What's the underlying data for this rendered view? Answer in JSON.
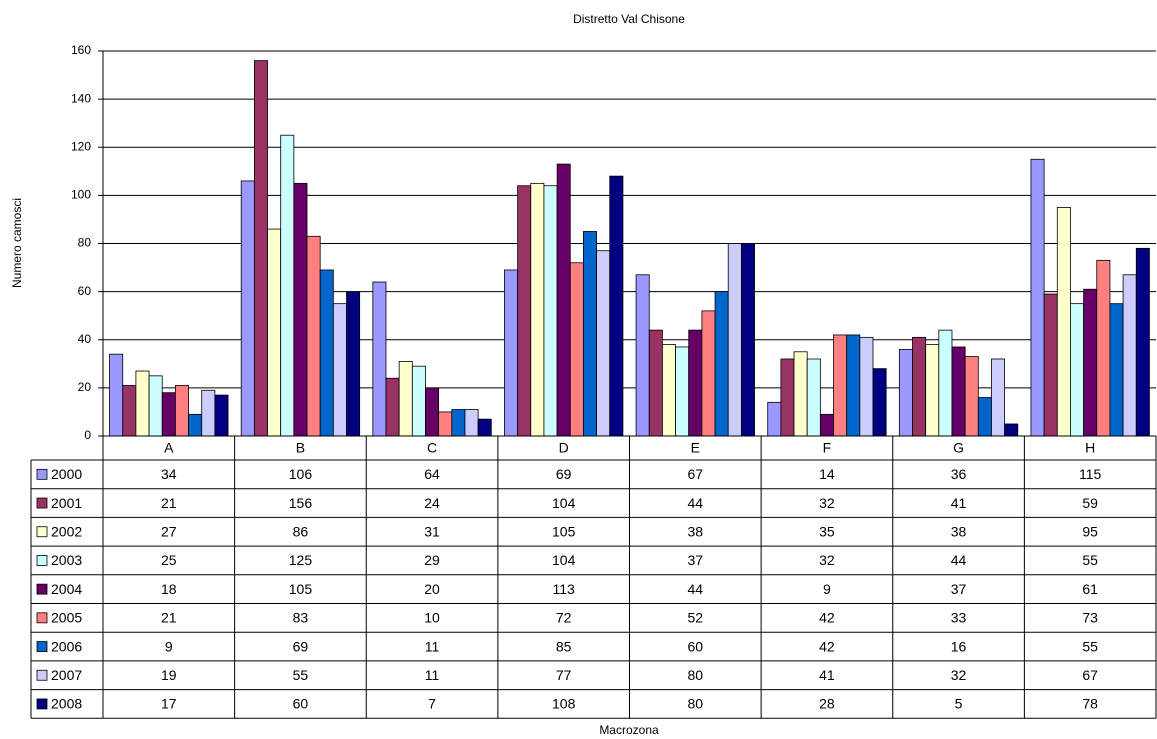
{
  "chart_data": {
    "type": "bar",
    "title": "Distretto Val Chisone",
    "x_label": "Macrozona",
    "y_label": "Numero camosci",
    "categories": [
      "A",
      "B",
      "C",
      "D",
      "E",
      "F",
      "G",
      "H"
    ],
    "ylim": [
      0,
      160
    ],
    "yticks": [
      0,
      20,
      40,
      60,
      80,
      100,
      120,
      140,
      160
    ],
    "grid": true,
    "series": [
      {
        "name": "2000",
        "color": "#9999ff",
        "values": [
          34,
          106,
          64,
          69,
          67,
          14,
          36,
          115
        ]
      },
      {
        "name": "2001",
        "color": "#993366",
        "values": [
          21,
          156,
          24,
          104,
          44,
          32,
          41,
          59
        ]
      },
      {
        "name": "2002",
        "color": "#ffffcc",
        "values": [
          27,
          86,
          31,
          105,
          38,
          35,
          38,
          95
        ]
      },
      {
        "name": "2003",
        "color": "#ccffff",
        "values": [
          25,
          125,
          29,
          104,
          37,
          32,
          44,
          55
        ]
      },
      {
        "name": "2004",
        "color": "#660066",
        "values": [
          18,
          105,
          20,
          113,
          44,
          9,
          37,
          61
        ]
      },
      {
        "name": "2005",
        "color": "#ff8080",
        "values": [
          21,
          83,
          10,
          72,
          52,
          42,
          33,
          73
        ]
      },
      {
        "name": "2006",
        "color": "#0066cc",
        "values": [
          9,
          69,
          11,
          85,
          60,
          42,
          16,
          55
        ]
      },
      {
        "name": "2007",
        "color": "#ccccff",
        "values": [
          19,
          55,
          11,
          77,
          80,
          41,
          32,
          67
        ]
      },
      {
        "name": "2008",
        "color": "#000080",
        "values": [
          17,
          60,
          7,
          108,
          80,
          28,
          5,
          78
        ]
      }
    ]
  }
}
